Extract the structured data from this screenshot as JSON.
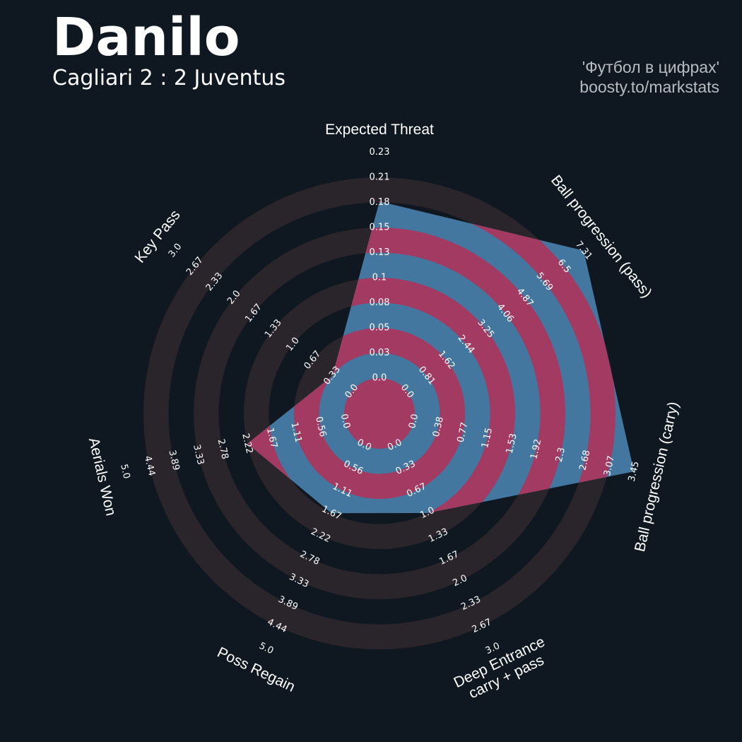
{
  "header": {
    "title": "Danilo",
    "subtitle": "Cagliari 2 : 2 Juventus",
    "credit_line1": "'Футбол в цифрах'",
    "credit_line2": "boosty.to/markstats"
  },
  "colors": {
    "background": "#0f1820",
    "ring_dark": "#2a242b",
    "shape_blue": "#4477a0",
    "shape_magenta": "#a23a62",
    "text": "#ffffff"
  },
  "chart_data": {
    "type": "radar",
    "params": [
      {
        "label": [
          "Expected Threat"
        ],
        "value": 0.18,
        "ticks": [
          "0.0",
          "0.03",
          "0.05",
          "0.08",
          "0.1",
          "0.13",
          "0.15",
          "0.18",
          "0.21",
          "0.23"
        ]
      },
      {
        "label": [
          "Ball progression (pass)"
        ],
        "value": 7.31,
        "ticks": [
          "0.0",
          "0.81",
          "1.62",
          "2.44",
          "3.25",
          "4.06",
          "4.87",
          "5.69",
          "6.5",
          "7.31"
        ]
      },
      {
        "label": [
          "Ball progression (carry)"
        ],
        "value": 3.45,
        "ticks": [
          "0.0",
          "0.38",
          "0.77",
          "1.15",
          "1.53",
          "1.92",
          "2.3",
          "2.68",
          "3.07",
          "3.45"
        ]
      },
      {
        "label": [
          "Deep Entrance",
          "carry + pass"
        ],
        "value": 1.0,
        "ticks": [
          "0.0",
          "0.33",
          "0.67",
          "1.0",
          "1.33",
          "1.67",
          "2.0",
          "2.33",
          "2.67",
          "3.0"
        ]
      },
      {
        "label": [
          "Poss Regain"
        ],
        "value": 1.67,
        "ticks": [
          "0.0",
          "0.56",
          "1.11",
          "1.67",
          "2.22",
          "2.78",
          "3.33",
          "3.89",
          "4.44",
          "5.0"
        ]
      },
      {
        "label": [
          "Aerials Won"
        ],
        "value": 2.22,
        "ticks": [
          "0.0",
          "0.56",
          "1.11",
          "1.67",
          "2.22",
          "2.78",
          "3.33",
          "3.89",
          "4.44",
          "5.0"
        ]
      },
      {
        "label": [
          "Key Pass"
        ],
        "value": 0.33,
        "ticks": [
          "0.0",
          "0.33",
          "0.67",
          "1.0",
          "1.33",
          "1.67",
          "2.0",
          "2.33",
          "2.67",
          "3.0"
        ]
      }
    ],
    "range_min": 0,
    "levels": 9
  }
}
